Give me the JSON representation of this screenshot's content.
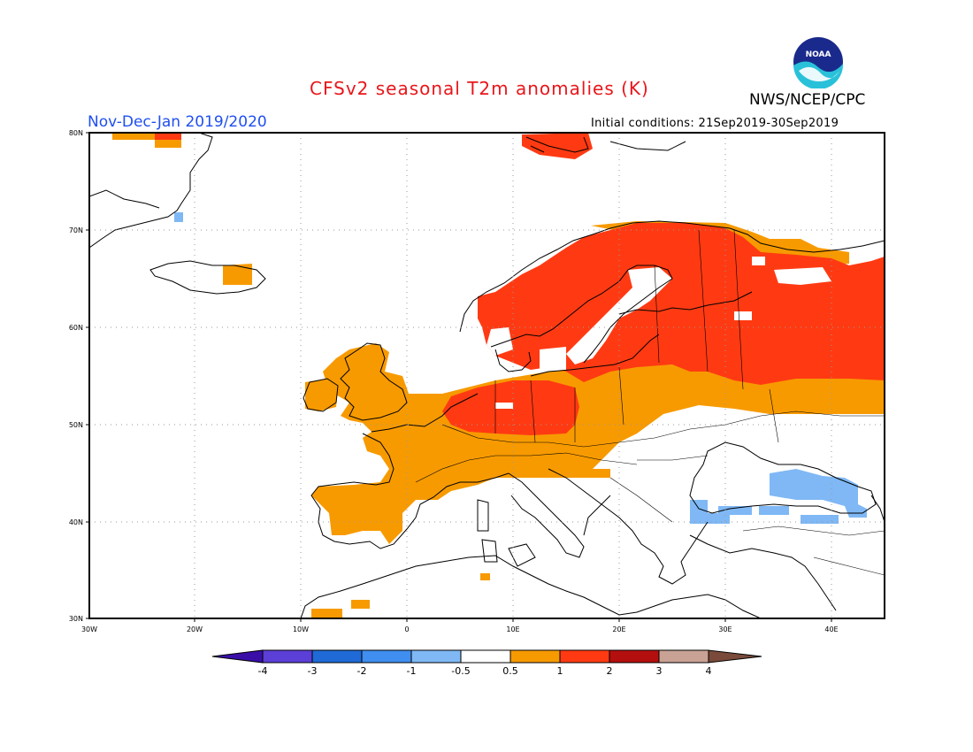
{
  "title": "CFSv2 seasonal T2m anomalies (K)",
  "agency": "NWS/NCEP/CPC",
  "logo_text": "NOAA",
  "season": "Nov-Dec-Jan 2019/2020",
  "initial_conditions": "Initial conditions: 21Sep2019-30Sep2019",
  "map": {
    "lon_range": [
      -30,
      45
    ],
    "lat_range": [
      30,
      80
    ],
    "lon_ticks": [
      "30W",
      "20W",
      "10W",
      "0",
      "10E",
      "20E",
      "30E",
      "40E"
    ],
    "lat_ticks": [
      "30N",
      "40N",
      "50N",
      "60N",
      "70N",
      "80N"
    ],
    "grid": "dotted"
  },
  "colorbar": {
    "labels": [
      "-4",
      "-3",
      "-2",
      "-1",
      "-0.5",
      "0.5",
      "1",
      "2",
      "3",
      "4"
    ],
    "colors": [
      "#3a0fa8",
      "#5b3fd6",
      "#1f6ad6",
      "#3f8ef0",
      "#7fb8f5",
      "#ffffff",
      "#f79a00",
      "#ff3a12",
      "#b40f0f",
      "#c8a294",
      "#7a4a3a"
    ]
  },
  "anomaly_regions": [
    {
      "name": "Scandinavia & NW Russia",
      "category": "1 to 2",
      "color": "#ff3a12"
    },
    {
      "name": "Germany & Low Countries",
      "category": "1 to 2",
      "color": "#ff3a12"
    },
    {
      "name": "Western & Central Europe",
      "category": "0.5 to 1",
      "color": "#f79a00"
    },
    {
      "name": "Iberia",
      "category": "0.5 to 1",
      "color": "#f79a00"
    },
    {
      "name": "Black Sea & Turkey",
      "category": "-1 to -0.5",
      "color": "#7fb8f5"
    }
  ]
}
